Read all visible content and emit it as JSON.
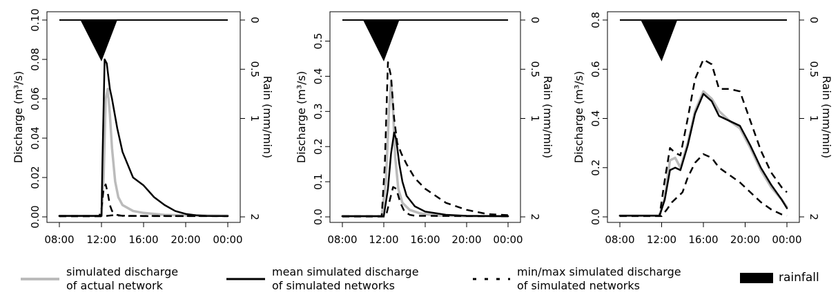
{
  "chart_data": [
    {
      "type": "line",
      "panel": 1,
      "xlabel": "",
      "ylabel": "Discharge (m³/s)",
      "y2label": "Rain (mm/min)",
      "x_ticks": [
        "08:00",
        "12:00",
        "16:00",
        "20:00",
        "00:00"
      ],
      "x_hours": [
        8,
        12,
        16,
        20,
        24
      ],
      "xlim": [
        8,
        24
      ],
      "ylim": [
        0,
        0.1
      ],
      "y_ticks": [
        0.0,
        0.02,
        0.04,
        0.06,
        0.08,
        0.1
      ],
      "y_tick_labels": [
        "0.00",
        "0.02",
        "0.04",
        "0.06",
        "0.08",
        "0.10"
      ],
      "y2_ticks": [
        0,
        0.5,
        1,
        2
      ],
      "y2_tick_labels": [
        "0",
        "0.5",
        "1",
        "2"
      ],
      "y2lim": [
        0,
        2
      ],
      "rainfall": {
        "start": 10,
        "peak": 12,
        "end": 13.5,
        "peak_rate": 0.42
      },
      "series": [
        {
          "key": "actual",
          "x": [
            8,
            12,
            12.2,
            12.4,
            12.6,
            12.8,
            13.0,
            13.3,
            13.6,
            14,
            15,
            16,
            18,
            20,
            24
          ],
          "y": [
            0.0005,
            0.0005,
            0.02,
            0.06,
            0.065,
            0.052,
            0.035,
            0.018,
            0.01,
            0.006,
            0.003,
            0.002,
            0.001,
            0.0008,
            0.0006
          ]
        },
        {
          "key": "mean",
          "x": [
            8,
            12,
            12.1,
            12.3,
            12.5,
            12.8,
            13.0,
            13.5,
            14,
            15,
            16,
            17,
            18,
            19,
            20,
            21,
            22,
            24
          ],
          "y": [
            0.0005,
            0.0005,
            0.03,
            0.08,
            0.078,
            0.065,
            0.06,
            0.045,
            0.033,
            0.02,
            0.016,
            0.01,
            0.006,
            0.003,
            0.0015,
            0.0008,
            0.0005,
            0.0004
          ]
        },
        {
          "key": "min",
          "x": [
            8,
            11.8,
            12.0,
            12.2,
            12.4,
            12.6,
            12.8,
            13.0,
            13.5,
            14,
            24
          ],
          "y": [
            0.0005,
            0.0005,
            0.004,
            0.014,
            0.0165,
            0.012,
            0.006,
            0.003,
            0.001,
            0.0005,
            0.0004
          ]
        },
        {
          "key": "max",
          "x": [
            8,
            12,
            12.5,
            13,
            14,
            16,
            18,
            24
          ],
          "y": [
            0.0003,
            0.0003,
            0.0005,
            0.0008,
            0.0006,
            0.0004,
            0.0004,
            0.0004
          ]
        }
      ]
    },
    {
      "type": "line",
      "panel": 2,
      "xlabel": "",
      "ylabel": "Discharge (m³/s)",
      "y2label": "Rain (mm/min)",
      "x_ticks": [
        "08:00",
        "12:00",
        "16:00",
        "20:00",
        "00:00"
      ],
      "x_hours": [
        8,
        12,
        16,
        20,
        24
      ],
      "xlim": [
        8,
        24
      ],
      "ylim": [
        0,
        0.56
      ],
      "y_ticks": [
        0.0,
        0.1,
        0.2,
        0.3,
        0.4,
        0.5
      ],
      "y_tick_labels": [
        "0.0",
        "0.1",
        "0.2",
        "0.3",
        "0.4",
        "0.5"
      ],
      "y2_ticks": [
        0,
        0.5,
        1,
        2
      ],
      "y2_tick_labels": [
        "0",
        "0.5",
        "1",
        "2"
      ],
      "y2lim": [
        0,
        2
      ],
      "rainfall": {
        "start": 10,
        "peak": 12,
        "end": 13.5,
        "peak_rate": 0.42
      },
      "series": [
        {
          "key": "actual",
          "x": [
            8,
            11.8,
            12.2,
            12.5,
            12.7,
            12.9,
            13.1,
            13.4,
            13.8,
            14.5,
            15.5,
            17,
            20,
            24
          ],
          "y": [
            0.002,
            0.002,
            0.1,
            0.3,
            0.385,
            0.3,
            0.17,
            0.08,
            0.04,
            0.02,
            0.01,
            0.004,
            0.002,
            0.002
          ]
        },
        {
          "key": "mean",
          "x": [
            8,
            12,
            12.4,
            12.7,
            13.0,
            13.2,
            13.5,
            13.8,
            14.2,
            15,
            16,
            18,
            20,
            24
          ],
          "y": [
            0.002,
            0.002,
            0.08,
            0.18,
            0.24,
            0.22,
            0.15,
            0.1,
            0.06,
            0.03,
            0.015,
            0.006,
            0.003,
            0.002
          ]
        },
        {
          "key": "max",
          "x": [
            8,
            11.8,
            12.1,
            12.4,
            12.7,
            13.0,
            13.3,
            13.7,
            14.2,
            15,
            16,
            18,
            20,
            22,
            24
          ],
          "y": [
            0.002,
            0.002,
            0.15,
            0.44,
            0.4,
            0.28,
            0.21,
            0.18,
            0.15,
            0.11,
            0.08,
            0.04,
            0.02,
            0.008,
            0.005
          ]
        },
        {
          "key": "min",
          "x": [
            8,
            12.2,
            12.6,
            12.9,
            13.2,
            13.6,
            14.0,
            14.5,
            15,
            24
          ],
          "y": [
            0.001,
            0.001,
            0.05,
            0.085,
            0.08,
            0.04,
            0.015,
            0.006,
            0.003,
            0.002
          ]
        }
      ]
    },
    {
      "type": "line",
      "panel": 3,
      "xlabel": "",
      "ylabel": "Discharge (m³/s)",
      "y2label": "Rain (mm/min)",
      "x_ticks": [
        "08:00",
        "12:00",
        "16:00",
        "20:00",
        "00:00"
      ],
      "x_hours": [
        8,
        12,
        16,
        20,
        24
      ],
      "xlim": [
        8,
        24
      ],
      "ylim": [
        0,
        0.8
      ],
      "y_ticks": [
        0.0,
        0.2,
        0.4,
        0.6,
        0.8
      ],
      "y_tick_labels": [
        "0.0",
        "0.2",
        "0.4",
        "0.6",
        "0.8"
      ],
      "y2_ticks": [
        0,
        0.5,
        1,
        2
      ],
      "y2_tick_labels": [
        "0",
        "0.5",
        "1",
        "2"
      ],
      "y2lim": [
        0,
        2
      ],
      "rainfall": {
        "start": 10,
        "peak": 12,
        "end": 13.5,
        "peak_rate": 0.42
      },
      "series": [
        {
          "key": "actual",
          "x": [
            8,
            11.8,
            12.3,
            12.8,
            13.3,
            13.8,
            14.5,
            15.2,
            16,
            16.8,
            17.5,
            18.5,
            19.5,
            20.5,
            21.5,
            22.5,
            23.5,
            24
          ],
          "y": [
            0.005,
            0.005,
            0.08,
            0.23,
            0.24,
            0.2,
            0.3,
            0.43,
            0.51,
            0.48,
            0.43,
            0.39,
            0.36,
            0.28,
            0.19,
            0.12,
            0.07,
            0.04
          ]
        },
        {
          "key": "mean",
          "x": [
            8,
            11.8,
            12.3,
            12.8,
            13.3,
            13.8,
            14.5,
            15.2,
            16,
            16.8,
            17.5,
            18.5,
            19.5,
            20.5,
            21.5,
            22.5,
            23.5,
            24
          ],
          "y": [
            0.005,
            0.005,
            0.07,
            0.19,
            0.2,
            0.19,
            0.29,
            0.42,
            0.5,
            0.47,
            0.41,
            0.39,
            0.37,
            0.29,
            0.2,
            0.13,
            0.07,
            0.035
          ]
        },
        {
          "key": "max",
          "x": [
            8,
            11.8,
            12.3,
            12.8,
            13.3,
            13.8,
            14.5,
            15.2,
            16,
            16.8,
            17.5,
            18.5,
            19.5,
            20.5,
            21.5,
            22.5,
            23.5,
            24
          ],
          "y": [
            0.005,
            0.005,
            0.15,
            0.28,
            0.26,
            0.25,
            0.4,
            0.56,
            0.64,
            0.62,
            0.52,
            0.52,
            0.51,
            0.39,
            0.27,
            0.18,
            0.12,
            0.1
          ]
        },
        {
          "key": "min",
          "x": [
            8,
            12,
            12.5,
            13.0,
            13.5,
            14,
            14.5,
            15.2,
            16,
            16.8,
            17.5,
            18.5,
            19.5,
            20.5,
            21.5,
            22.5,
            23.5,
            24
          ],
          "y": [
            0.003,
            0.003,
            0.03,
            0.06,
            0.08,
            0.1,
            0.16,
            0.22,
            0.255,
            0.24,
            0.2,
            0.17,
            0.14,
            0.1,
            0.06,
            0.03,
            0.01,
            0.005
          ]
        }
      ]
    }
  ],
  "legend": {
    "actual": {
      "line1": "simulated discharge",
      "line2": "of actual network",
      "color": "#bbbbbb"
    },
    "mean": {
      "line1": "mean simulated discharge",
      "line2": "of simulated networks",
      "color": "#000000"
    },
    "minmax": {
      "line1": "min/max simulated discharge",
      "line2": "of simulated networks",
      "color": "#000000"
    },
    "rainfall": {
      "label": "rainfall",
      "color": "#000000"
    }
  },
  "colors": {
    "actual": "#bbbbbb",
    "mean": "#000000",
    "minmax": "#000000",
    "rain": "#000000"
  }
}
